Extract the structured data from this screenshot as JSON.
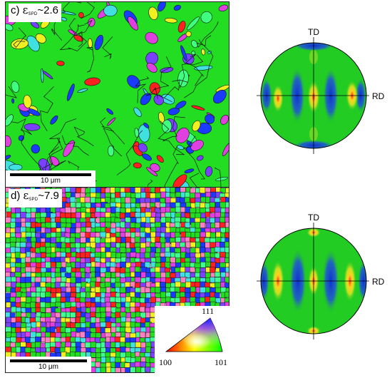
{
  "panel_c": {
    "label_prefix": "c) ",
    "epsilon": "ε",
    "subscript": "SPD",
    "label_value": "~2.6",
    "scale_text": "10 μm"
  },
  "panel_d": {
    "label_prefix": "d) ",
    "epsilon": "ε",
    "subscript": "SPD",
    "label_value": "~7.9",
    "scale_text": "10 μm"
  },
  "pole_figures": {
    "top": {
      "td_label": "TD",
      "rd_label": "RD"
    },
    "bottom": {
      "td_label": "TD",
      "rd_label": "RD"
    }
  },
  "ipf_legend": {
    "label_111": "111",
    "label_100": "100",
    "label_101": "101"
  },
  "colors": {
    "green": "#22dd22",
    "blue": "#1a3aff",
    "magenta": "#e040e0",
    "yellow": "#f0f020",
    "red": "#ff2020",
    "cyan": "#40e0e0"
  }
}
